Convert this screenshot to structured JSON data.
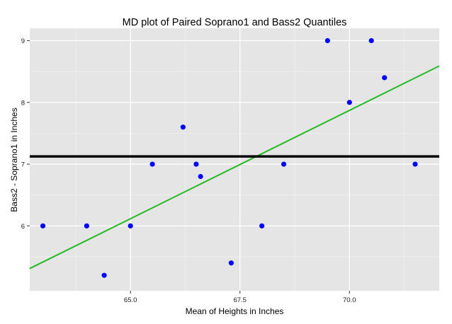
{
  "chart_data": {
    "type": "scatter",
    "title": "MD plot of Paired Soprano1 and Bass2 Quantiles",
    "xlabel": "Mean of Heights in Inches",
    "ylabel": "Bass2 - Soprano1 in Inches",
    "xlim": [
      62.7,
      72.05
    ],
    "ylim": [
      4.95,
      9.2
    ],
    "x_ticks": [
      65.0,
      67.5,
      70.0
    ],
    "x_tick_labels": [
      "65.0",
      "67.5",
      "70.0"
    ],
    "x_minor_ticks": [
      63.75,
      66.25,
      68.75,
      71.25
    ],
    "y_ticks": [
      6,
      7,
      8,
      9
    ],
    "y_tick_labels": [
      "6",
      "7",
      "8",
      "9"
    ],
    "y_minor_ticks": [
      5.5,
      6.5,
      7.5,
      8.5
    ],
    "grid": true,
    "background": "#e5e5e5",
    "grid_color": "#ffffff",
    "points": [
      {
        "x": 63.0,
        "y": 6.0
      },
      {
        "x": 64.0,
        "y": 6.0
      },
      {
        "x": 64.4,
        "y": 5.2
      },
      {
        "x": 65.0,
        "y": 6.0
      },
      {
        "x": 65.5,
        "y": 7.0
      },
      {
        "x": 66.2,
        "y": 7.6
      },
      {
        "x": 66.5,
        "y": 7.0
      },
      {
        "x": 66.6,
        "y": 6.8
      },
      {
        "x": 67.3,
        "y": 5.4
      },
      {
        "x": 68.0,
        "y": 6.0
      },
      {
        "x": 68.5,
        "y": 7.0
      },
      {
        "x": 69.5,
        "y": 9.0
      },
      {
        "x": 70.0,
        "y": 8.0
      },
      {
        "x": 70.5,
        "y": 9.0
      },
      {
        "x": 70.8,
        "y": 8.4
      },
      {
        "x": 71.5,
        "y": 7.0
      }
    ],
    "point_color": "#0000ff",
    "hline": {
      "y": 7.125,
      "color": "#000000"
    },
    "fit_line": {
      "x": [
        62.7,
        72.05
      ],
      "y": [
        5.31,
        8.59
      ],
      "color": "#22bb22"
    }
  }
}
